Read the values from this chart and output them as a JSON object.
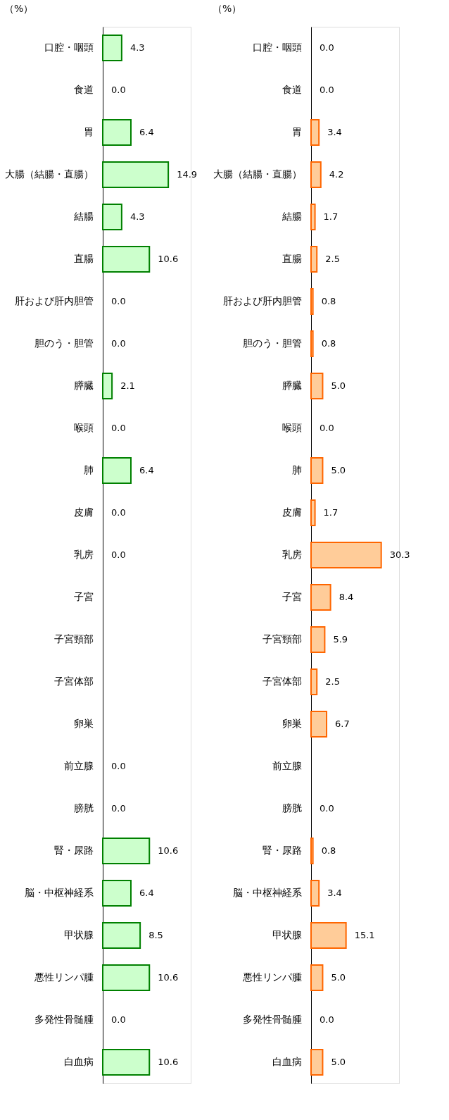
{
  "chart_data": [
    {
      "type": "bar",
      "orientation": "horizontal",
      "title": "（%）",
      "tick_labels": "y",
      "xlim": [
        0,
        20
      ],
      "categories": [
        "口腔・咽頭",
        "食道",
        "胃",
        "大腸（結腸・直腸）",
        "結腸",
        "直腸",
        "肝および肝内胆管",
        "胆のう・胆管",
        "膵臓",
        "喉頭",
        "肺",
        "皮膚",
        "乳房",
        "子宮",
        "子宮頸部",
        "子宮体部",
        "卵巣",
        "前立腺",
        "膀胱",
        "腎・尿路",
        "脳・中枢神経系",
        "甲状腺",
        "悪性リンパ腫",
        "多発性骨髄腫",
        "白血病"
      ],
      "series": [
        {
          "color": "#ccffcc",
          "values": [
            4.3,
            0.0,
            6.4,
            14.9,
            4.3,
            10.6,
            0.0,
            0.0,
            2.1,
            0.0,
            6.4,
            0.0,
            0.0,
            null,
            null,
            null,
            null,
            0.0,
            0.0,
            10.6,
            6.4,
            8.5,
            10.6,
            0.0,
            10.6
          ],
          "value_labels": [
            "4.3",
            "0.0",
            "6.4",
            "14.9",
            "4.3",
            "10.6",
            "0.0",
            "0.0",
            "2.1",
            "0.0",
            "6.4",
            "0.0",
            "0.0",
            null,
            null,
            null,
            null,
            "0.0",
            "0.0",
            "10.6",
            "6.4",
            "8.5",
            "10.6",
            "0.0",
            "10.6"
          ]
        }
      ]
    },
    {
      "type": "bar",
      "orientation": "horizontal",
      "title": "（%）",
      "tick_labels": "y",
      "xlim": [
        0,
        38
      ],
      "categories": [
        "口腔・咽頭",
        "食道",
        "胃",
        "大腸（結腸・直腸）",
        "結腸",
        "直腸",
        "肝および肝内胆管",
        "胆のう・胆管",
        "膵臓",
        "喉頭",
        "肺",
        "皮膚",
        "乳房",
        "子宮",
        "子宮頸部",
        "子宮体部",
        "卵巣",
        "前立腺",
        "膀胱",
        "腎・尿路",
        "脳・中枢神経系",
        "甲状腺",
        "悪性リンパ腫",
        "多発性骨髄腫",
        "白血病"
      ],
      "series": [
        {
          "color": "#ffcc99",
          "values": [
            0.0,
            0.0,
            3.4,
            4.2,
            1.7,
            2.5,
            0.8,
            0.8,
            5.0,
            0.0,
            5.0,
            1.7,
            30.3,
            8.4,
            5.9,
            2.5,
            6.7,
            null,
            0.0,
            0.8,
            3.4,
            15.1,
            5.0,
            0.0,
            5.0
          ],
          "value_labels": [
            "0.0",
            "0.0",
            "3.4",
            "4.2",
            "1.7",
            "2.5",
            "0.8",
            "0.8",
            "5.0",
            "0.0",
            "5.0",
            "1.7",
            "30.3",
            "8.4",
            "5.9",
            "2.5",
            "6.7",
            null,
            "0.0",
            "0.8",
            "3.4",
            "15.1",
            "5.0",
            "0.0",
            "5.0"
          ]
        }
      ]
    }
  ]
}
